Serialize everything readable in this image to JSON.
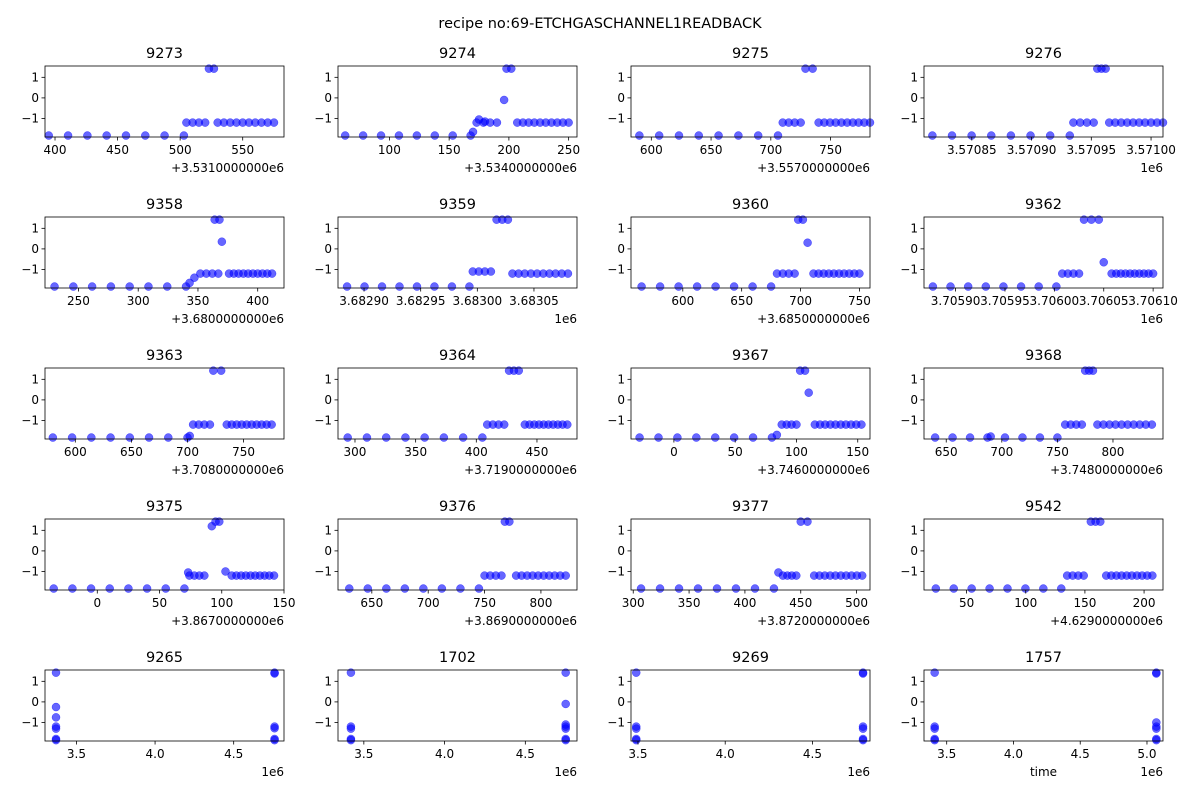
{
  "figure": {
    "suptitle": "recipe no:69-ETCHGASCHANNEL1READBACK",
    "point_color": "#0000ff"
  },
  "chart_data": [
    {
      "type": "scatter",
      "title": "9273",
      "xlim": [
        392,
        583
      ],
      "ylim": [
        -1.9,
        1.55
      ],
      "xticks": [
        400,
        450,
        500,
        550
      ],
      "yticks": [
        -1,
        0,
        1
      ],
      "offset_label": "+3.5310000000e6",
      "segments": [
        [
          395,
          503,
          8,
          -1.83
        ],
        [
          505,
          520,
          4,
          -1.2
        ],
        [
          523,
          527,
          2,
          1.42
        ],
        [
          530,
          575,
          10,
          -1.2
        ]
      ]
    },
    {
      "type": "scatter",
      "title": "9274",
      "xlim": [
        57,
        257
      ],
      "ylim": [
        -1.9,
        1.55
      ],
      "xticks": [
        100,
        150,
        200,
        250
      ],
      "yticks": [
        -1,
        0,
        1
      ],
      "offset_label": "+3.5340000000e6",
      "segments": [
        [
          63,
          168,
          8,
          -1.83
        ],
        [
          173,
          190,
          4,
          -1.2
        ],
        [
          196,
          196,
          1,
          -0.1
        ],
        [
          198,
          202,
          2,
          1.42
        ],
        [
          207,
          250,
          10,
          -1.2
        ]
      ],
      "points": [
        [
          170,
          -1.65
        ],
        [
          175,
          -1.05
        ],
        [
          180,
          -1.15
        ]
      ]
    },
    {
      "type": "scatter",
      "title": "9275",
      "xlim": [
        583,
        783
      ],
      "ylim": [
        -1.9,
        1.55
      ],
      "xticks": [
        600,
        650,
        700,
        750
      ],
      "yticks": [
        -1,
        0,
        1
      ],
      "offset_label": "+3.5570000000e6",
      "segments": [
        [
          590,
          706,
          8,
          -1.83
        ],
        [
          710,
          725,
          4,
          -1.2
        ],
        [
          729,
          735,
          2,
          1.42
        ],
        [
          740,
          783,
          10,
          -1.2
        ]
      ]
    },
    {
      "type": "scatter",
      "title": "9276",
      "xlim": [
        3570810,
        3571010
      ],
      "ylim": [
        -1.9,
        1.55
      ],
      "xticks": [
        3570850,
        3570900,
        3570950,
        3571000
      ],
      "xtick_labels": [
        "3.57085",
        "3.57090",
        "3.57095",
        "3.57100"
      ],
      "yticks": [
        -1,
        0,
        1
      ],
      "offset_label": "1e6",
      "segments": [
        [
          3570817,
          3570932,
          8,
          -1.83
        ],
        [
          3570935,
          3570952,
          4,
          -1.2
        ],
        [
          3570955,
          3570962,
          3,
          1.42
        ],
        [
          3570965,
          3571010,
          10,
          -1.2
        ]
      ]
    },
    {
      "type": "scatter",
      "title": "9358",
      "xlim": [
        222,
        422
      ],
      "ylim": [
        -1.9,
        1.55
      ],
      "xticks": [
        250,
        300,
        350,
        400
      ],
      "yticks": [
        -1,
        0,
        1
      ],
      "offset_label": "+3.6800000000e6",
      "segments": [
        [
          230,
          340,
          8,
          -1.83
        ],
        [
          352,
          367,
          4,
          -1.2
        ],
        [
          364,
          368,
          2,
          1.42
        ],
        [
          376,
          412,
          10,
          -1.2
        ]
      ],
      "points": [
        [
          343,
          -1.65
        ],
        [
          347,
          -1.4
        ],
        [
          370,
          0.35
        ]
      ]
    },
    {
      "type": "scatter",
      "title": "9359",
      "xlim": [
        3682877,
        3683088
      ],
      "ylim": [
        -1.9,
        1.55
      ],
      "xticks": [
        3682900,
        3682950,
        3683000,
        3683050
      ],
      "xtick_labels": [
        "3.68290",
        "3.68295",
        "3.68300",
        "3.68305"
      ],
      "yticks": [
        -1,
        0,
        1
      ],
      "offset_label": "1e6",
      "segments": [
        [
          3682885,
          3682993,
          8,
          -1.83
        ],
        [
          3682996,
          3683012,
          4,
          -1.1
        ],
        [
          3683017,
          3683027,
          3,
          1.42
        ],
        [
          3683031,
          3683080,
          10,
          -1.2
        ]
      ]
    },
    {
      "type": "scatter",
      "title": "9360",
      "xlim": [
        556,
        759
      ],
      "ylim": [
        -1.9,
        1.55
      ],
      "xticks": [
        600,
        650,
        700,
        750
      ],
      "yticks": [
        -1,
        0,
        1
      ],
      "offset_label": "+3.6850000000e6",
      "segments": [
        [
          565,
          675,
          8,
          -1.83
        ],
        [
          680,
          695,
          4,
          -1.2
        ],
        [
          698,
          702,
          2,
          1.42
        ],
        [
          711,
          750,
          10,
          -1.2
        ]
      ],
      "points": [
        [
          706,
          0.3
        ]
      ]
    },
    {
      "type": "scatter",
      "title": "9362",
      "xlim": [
        3705868,
        3706110
      ],
      "ylim": [
        -1.9,
        1.55
      ],
      "xticks": [
        3705900,
        3705950,
        3706000,
        3706050,
        3706100
      ],
      "xtick_labels": [
        "3.70590",
        "3.70595",
        "3.70600",
        "3.70605",
        "3.70610"
      ],
      "yticks": [
        -1,
        0,
        1
      ],
      "offset_label": "1e6",
      "segments": [
        [
          3705877,
          3706002,
          8,
          -1.83
        ],
        [
          3706008,
          3706025,
          4,
          -1.2
        ],
        [
          3706030,
          3706045,
          3,
          1.42
        ],
        [
          3706058,
          3706100,
          10,
          -1.2
        ]
      ],
      "points": [
        [
          3706050,
          -0.65
        ]
      ]
    },
    {
      "type": "scatter",
      "title": "9363",
      "xlim": [
        573,
        786
      ],
      "ylim": [
        -1.9,
        1.55
      ],
      "xticks": [
        600,
        650,
        700,
        750
      ],
      "yticks": [
        -1,
        0,
        1
      ],
      "offset_label": "+3.7080000000e6",
      "segments": [
        [
          580,
          700,
          8,
          -1.83
        ],
        [
          705,
          720,
          4,
          -1.2
        ],
        [
          723,
          730,
          2,
          1.42
        ],
        [
          735,
          775,
          10,
          -1.2
        ]
      ],
      "points": [
        [
          702,
          -1.75
        ]
      ]
    },
    {
      "type": "scatter",
      "title": "9364",
      "xlim": [
        286,
        483
      ],
      "ylim": [
        -1.9,
        1.55
      ],
      "xticks": [
        300,
        350,
        400,
        450
      ],
      "yticks": [
        -1,
        0,
        1
      ],
      "offset_label": "+3.7190000000e6",
      "segments": [
        [
          294,
          405,
          8,
          -1.83
        ],
        [
          409,
          423,
          4,
          -1.2
        ],
        [
          427,
          435,
          3,
          1.42
        ],
        [
          440,
          475,
          10,
          -1.2
        ]
      ]
    },
    {
      "type": "scatter",
      "title": "9367",
      "xlim": [
        -35,
        160
      ],
      "ylim": [
        -1.9,
        1.55
      ],
      "xticks": [
        0,
        50,
        100,
        150
      ],
      "yticks": [
        -1,
        0,
        1
      ],
      "offset_label": "+3.7460000000e6",
      "segments": [
        [
          -28,
          80,
          8,
          -1.83
        ],
        [
          88,
          100,
          4,
          -1.2
        ],
        [
          103,
          107,
          2,
          1.42
        ],
        [
          115,
          153,
          10,
          -1.2
        ]
      ],
      "points": [
        [
          84,
          -1.7
        ],
        [
          110,
          0.35
        ]
      ]
    },
    {
      "type": "scatter",
      "title": "9368",
      "xlim": [
        630,
        845
      ],
      "ylim": [
        -1.9,
        1.55
      ],
      "xticks": [
        650,
        700,
        750,
        800
      ],
      "yticks": [
        -1,
        0,
        1
      ],
      "offset_label": "+3.7480000000e6",
      "segments": [
        [
          640,
          750,
          8,
          -1.83
        ],
        [
          757,
          772,
          4,
          -1.2
        ],
        [
          775,
          782,
          3,
          1.42
        ],
        [
          786,
          835,
          10,
          -1.2
        ]
      ],
      "points": [
        [
          690,
          -1.78
        ]
      ]
    },
    {
      "type": "scatter",
      "title": "9375",
      "xlim": [
        -42,
        150
      ],
      "ylim": [
        -1.9,
        1.55
      ],
      "xticks": [
        0,
        50,
        100,
        150
      ],
      "yticks": [
        -1,
        0,
        1
      ],
      "offset_label": "+3.8670000000e6",
      "segments": [
        [
          -35,
          70,
          8,
          -1.83
        ],
        [
          74,
          86,
          4,
          -1.2
        ],
        [
          95,
          98,
          2,
          1.42
        ],
        [
          108,
          142,
          10,
          -1.2
        ]
      ],
      "points": [
        [
          73,
          -1.05
        ],
        [
          92,
          1.2
        ],
        [
          103,
          -1.0
        ]
      ]
    },
    {
      "type": "scatter",
      "title": "9376",
      "xlim": [
        620,
        832
      ],
      "ylim": [
        -1.9,
        1.55
      ],
      "xticks": [
        650,
        700,
        750,
        800
      ],
      "yticks": [
        -1,
        0,
        1
      ],
      "offset_label": "+3.8690000000e6",
      "segments": [
        [
          630,
          745,
          8,
          -1.83
        ],
        [
          750,
          765,
          4,
          -1.2
        ],
        [
          768,
          772,
          2,
          1.42
        ],
        [
          778,
          822,
          10,
          -1.2
        ]
      ]
    },
    {
      "type": "scatter",
      "title": "9377",
      "xlim": [
        298,
        512
      ],
      "ylim": [
        -1.9,
        1.55
      ],
      "xticks": [
        300,
        350,
        400,
        450,
        500
      ],
      "yticks": [
        -1,
        0,
        1
      ],
      "offset_label": "+3.8720000000e6",
      "segments": [
        [
          307,
          426,
          8,
          -1.83
        ],
        [
          434,
          446,
          4,
          -1.2
        ],
        [
          450,
          456,
          2,
          1.42
        ],
        [
          462,
          505,
          10,
          -1.2
        ]
      ],
      "points": [
        [
          430,
          -1.05
        ]
      ]
    },
    {
      "type": "scatter",
      "title": "9542",
      "xlim": [
        14,
        216
      ],
      "ylim": [
        -1.9,
        1.55
      ],
      "xticks": [
        50,
        100,
        150,
        200
      ],
      "yticks": [
        -1,
        0,
        1
      ],
      "offset_label": "+4.6290000000e6",
      "segments": [
        [
          24,
          130,
          8,
          -1.83
        ],
        [
          135,
          149,
          4,
          -1.2
        ],
        [
          155,
          163,
          3,
          1.42
        ],
        [
          168,
          207,
          10,
          -1.2
        ]
      ]
    },
    {
      "type": "scatter",
      "title": "9265",
      "xlim": [
        3300000,
        4820000
      ],
      "ylim": [
        -1.9,
        1.55
      ],
      "xticks": [
        3500000,
        4000000,
        4500000
      ],
      "xtick_labels": [
        "3.5",
        "4.0",
        "4.5"
      ],
      "yticks": [
        -1,
        0,
        1
      ],
      "offset_label": "1e6",
      "points": [
        [
          3370000,
          1.42
        ],
        [
          3370000,
          -0.25
        ],
        [
          3370000,
          -0.75
        ],
        [
          3370000,
          -1.2
        ],
        [
          3370000,
          -1.3
        ],
        [
          3370000,
          -1.8
        ],
        [
          3370000,
          -1.86
        ],
        [
          4760000,
          1.42
        ],
        [
          4760000,
          1.38
        ],
        [
          4760000,
          -1.2
        ],
        [
          4760000,
          -1.28
        ],
        [
          4760000,
          -1.8
        ],
        [
          4760000,
          -1.86
        ]
      ]
    },
    {
      "type": "scatter",
      "title": "1702",
      "xlim": [
        3340000,
        4820000
      ],
      "ylim": [
        -1.9,
        1.55
      ],
      "xticks": [
        3500000,
        4000000,
        4500000
      ],
      "xtick_labels": [
        "3.5",
        "4.0",
        "4.5"
      ],
      "yticks": [
        -1,
        0,
        1
      ],
      "offset_label": "1e6",
      "points": [
        [
          3420000,
          1.42
        ],
        [
          3420000,
          -1.2
        ],
        [
          3420000,
          -1.3
        ],
        [
          3420000,
          -1.8
        ],
        [
          3420000,
          -1.86
        ],
        [
          4750000,
          1.42
        ],
        [
          4750000,
          -0.1
        ],
        [
          4750000,
          -1.1
        ],
        [
          4750000,
          -1.2
        ],
        [
          4750000,
          -1.3
        ],
        [
          4750000,
          -1.8
        ],
        [
          4750000,
          -1.86
        ]
      ]
    },
    {
      "type": "scatter",
      "title": "9269",
      "xlim": [
        3460000,
        4830000
      ],
      "ylim": [
        -1.9,
        1.55
      ],
      "xticks": [
        3500000,
        4000000,
        4500000
      ],
      "xtick_labels": [
        "3.5",
        "4.0",
        "4.5"
      ],
      "yticks": [
        -1,
        0,
        1
      ],
      "offset_label": "1e6",
      "points": [
        [
          3490000,
          1.42
        ],
        [
          3490000,
          -1.2
        ],
        [
          3490000,
          -1.3
        ],
        [
          3490000,
          -1.8
        ],
        [
          3490000,
          -1.86
        ],
        [
          4790000,
          1.42
        ],
        [
          4790000,
          1.38
        ],
        [
          4790000,
          -1.2
        ],
        [
          4790000,
          -1.3
        ],
        [
          4790000,
          -1.8
        ],
        [
          4790000,
          -1.86
        ]
      ]
    },
    {
      "type": "scatter",
      "title": "1757",
      "xlim": [
        3330000,
        5120000
      ],
      "ylim": [
        -1.9,
        1.55
      ],
      "xticks": [
        3500000,
        4000000,
        4500000,
        5000000
      ],
      "xtick_labels": [
        "3.5",
        "4.0",
        "4.5",
        "5.0"
      ],
      "yticks": [
        -1,
        0,
        1
      ],
      "offset_label": "1e6",
      "xlabel": "time",
      "points": [
        [
          3410000,
          1.42
        ],
        [
          3410000,
          -1.2
        ],
        [
          3410000,
          -1.3
        ],
        [
          3410000,
          -1.8
        ],
        [
          3410000,
          -1.86
        ],
        [
          5070000,
          1.42
        ],
        [
          5070000,
          1.38
        ],
        [
          5070000,
          -1.0
        ],
        [
          5070000,
          -1.2
        ],
        [
          5070000,
          -1.3
        ],
        [
          5070000,
          -1.8
        ],
        [
          5070000,
          -1.86
        ]
      ]
    }
  ]
}
